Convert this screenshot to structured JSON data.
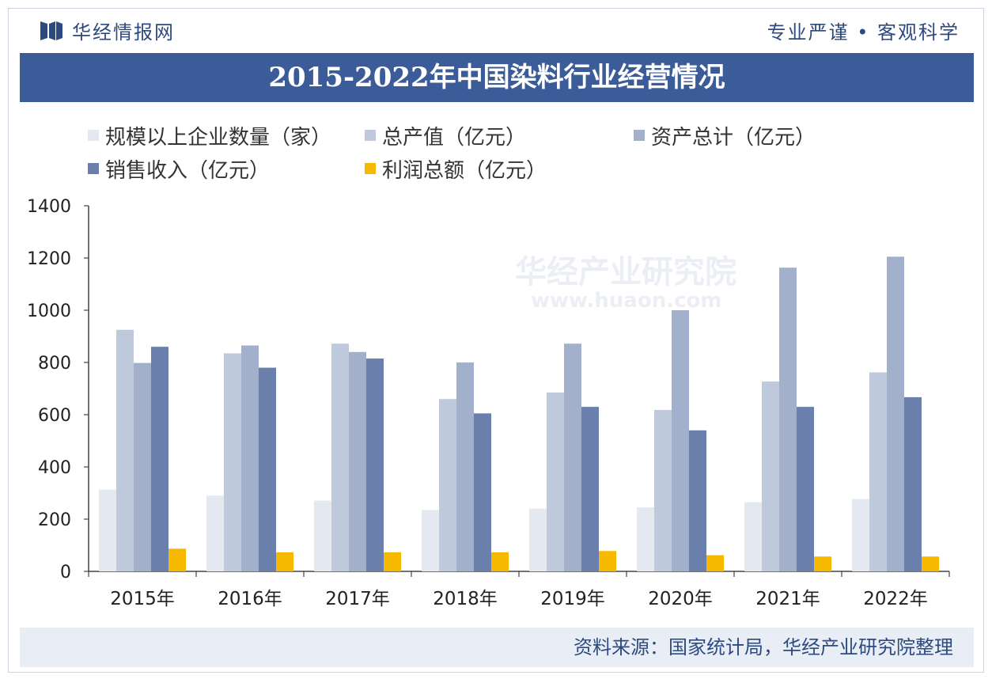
{
  "header": {
    "brand": "华经情报网",
    "slogan": "专业严谨 • 客观科学"
  },
  "watermark": {
    "text": "华经产业研究院",
    "url": "www.huaon.com"
  },
  "colors": {
    "title_bg": "#3b5b99",
    "brand": "#2d4a7f",
    "footer_bg": "#e9eef6"
  },
  "chart_data": {
    "type": "bar",
    "title": "2015-2022年中国染料行业经营情况",
    "categories": [
      "2015年",
      "2016年",
      "2017年",
      "2018年",
      "2019年",
      "2020年",
      "2021年",
      "2022年"
    ],
    "ylim": [
      0,
      1400
    ],
    "yticks": [
      0,
      200,
      400,
      600,
      800,
      1000,
      1200,
      1400
    ],
    "legend_position": "top",
    "series": [
      {
        "name": "规模以上企业数量（家）",
        "color": "#e3e8f1",
        "values": [
          313,
          290,
          271,
          235,
          240,
          245,
          265,
          277
        ]
      },
      {
        "name": "总产值（亿元）",
        "color": "#bec9dc",
        "values": [
          925,
          835,
          872,
          660,
          685,
          618,
          727,
          762
        ]
      },
      {
        "name": "资产总计（亿元）",
        "color": "#a2b0cb",
        "values": [
          798,
          865,
          840,
          800,
          872,
          1000,
          1163,
          1205
        ]
      },
      {
        "name": "销售收入（亿元）",
        "color": "#6a7fab",
        "values": [
          860,
          780,
          815,
          605,
          630,
          540,
          630,
          667
        ]
      },
      {
        "name": "利润总额（亿元）",
        "color": "#f7b900",
        "values": [
          87,
          73,
          73,
          73,
          78,
          62,
          57,
          57
        ]
      }
    ]
  },
  "footer": {
    "source": "资料来源：国家统计局，华经产业研究院整理"
  }
}
